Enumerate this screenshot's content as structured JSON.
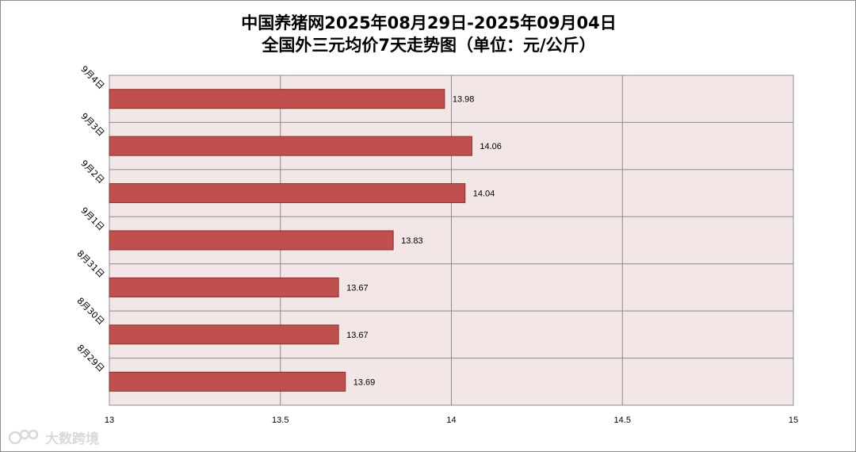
{
  "title": {
    "line1": "中国养猪网2025年08月29日-2025年09月04日",
    "line2": "全国外三元均价7天走势图（单位：元/公斤）"
  },
  "watermark": {
    "text": "大数跨境"
  },
  "colors": {
    "bar_fill": "#c0504d",
    "bar_stroke": "#8b2e2b",
    "plot_bg": "#f2e6e6",
    "grid": "#8c8c8c"
  },
  "chart_data": {
    "type": "bar",
    "orientation": "horizontal",
    "categories": [
      "9月4日",
      "9月3日",
      "9月2日",
      "9月1日",
      "8月31日",
      "8月30日",
      "8月29日"
    ],
    "values": [
      13.98,
      14.06,
      14.04,
      13.83,
      13.67,
      13.67,
      13.69
    ],
    "xlim": [
      13,
      15
    ],
    "xticks": [
      "13",
      "13.5",
      "14",
      "14.5",
      "15"
    ],
    "tick_values": [
      13,
      13.5,
      14,
      14.5,
      15
    ],
    "data_labels": [
      "13.98",
      "14.06",
      "14.04",
      "13.83",
      "13.67",
      "13.67",
      "13.69"
    ],
    "grid": true,
    "legend": "none"
  }
}
